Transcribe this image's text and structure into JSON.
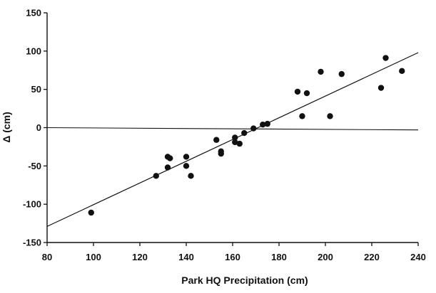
{
  "chart_data": {
    "type": "scatter",
    "title": "",
    "xlabel": "Park HQ Precipitation (cm)",
    "ylabel": "Δ (cm)",
    "xlim": [
      80,
      240
    ],
    "ylim": [
      -150,
      150
    ],
    "x_ticks": [
      80,
      100,
      120,
      140,
      160,
      180,
      200,
      220,
      240
    ],
    "y_ticks": [
      150,
      100,
      50,
      0,
      -50,
      -100,
      -150
    ],
    "grid": false,
    "legend": "none",
    "points": [
      {
        "x": 99,
        "y": -111
      },
      {
        "x": 127,
        "y": -63
      },
      {
        "x": 132,
        "y": -38
      },
      {
        "x": 132,
        "y": -52
      },
      {
        "x": 133,
        "y": -40
      },
      {
        "x": 140,
        "y": -38
      },
      {
        "x": 140,
        "y": -50
      },
      {
        "x": 142,
        "y": -63
      },
      {
        "x": 153,
        "y": -16
      },
      {
        "x": 155,
        "y": -31
      },
      {
        "x": 155,
        "y": -34
      },
      {
        "x": 161,
        "y": -13
      },
      {
        "x": 161,
        "y": -19
      },
      {
        "x": 163,
        "y": -21
      },
      {
        "x": 165,
        "y": -7
      },
      {
        "x": 169,
        "y": -1
      },
      {
        "x": 173,
        "y": 4
      },
      {
        "x": 175,
        "y": 5
      },
      {
        "x": 188,
        "y": 47
      },
      {
        "x": 190,
        "y": 15
      },
      {
        "x": 192,
        "y": 45
      },
      {
        "x": 198,
        "y": 73
      },
      {
        "x": 202,
        "y": 15
      },
      {
        "x": 207,
        "y": 70
      },
      {
        "x": 224,
        "y": 52
      },
      {
        "x": 226,
        "y": 91
      },
      {
        "x": 233,
        "y": 74
      }
    ],
    "fit_line": {
      "x": [
        80,
        240
      ],
      "y": [
        -129,
        98
      ]
    },
    "reference_lines": [
      {
        "orientation": "horizontal",
        "y_start": 0,
        "y_end": -3
      }
    ],
    "point_color": "#111111",
    "line_color": "#111111"
  }
}
